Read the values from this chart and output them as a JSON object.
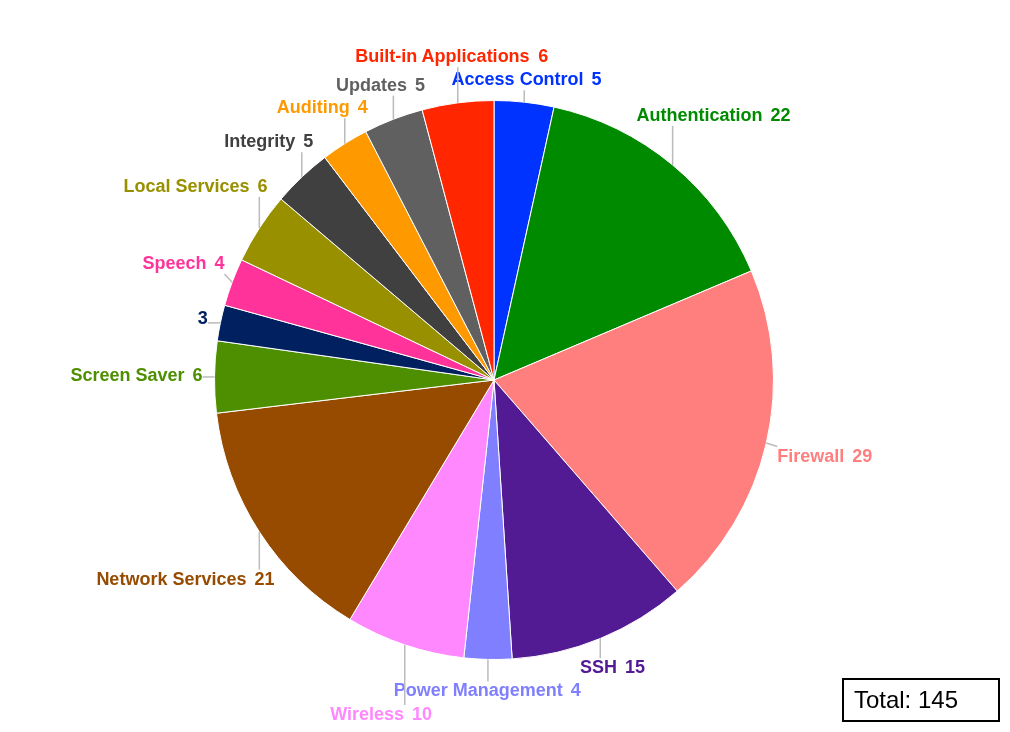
{
  "chart_data": {
    "type": "pie",
    "categories": [
      "Access Control",
      "Authentication",
      "Firewall",
      "SSH",
      "Power Management",
      "Wireless",
      "Network Services",
      "Screen Saver",
      null,
      "Speech",
      "Local Services",
      "Integrity",
      "Auditing",
      "Updates",
      "Built-in Applications"
    ],
    "values": [
      5,
      22,
      29,
      15,
      4,
      10,
      21,
      6,
      3,
      4,
      6,
      5,
      4,
      5,
      6
    ],
    "colors": [
      "#0033ff",
      "#008a00",
      "#ff7f7f",
      "#521b93",
      "#7f7fff",
      "#ff88ff",
      "#964b00",
      "#4d8f00",
      "#002060",
      "#ff3399",
      "#999000",
      "#404040",
      "#ff9900",
      "#606060",
      "#ff2600"
    ],
    "data_labels": true,
    "legend": false,
    "annotations": [
      "Total: 145"
    ]
  }
}
